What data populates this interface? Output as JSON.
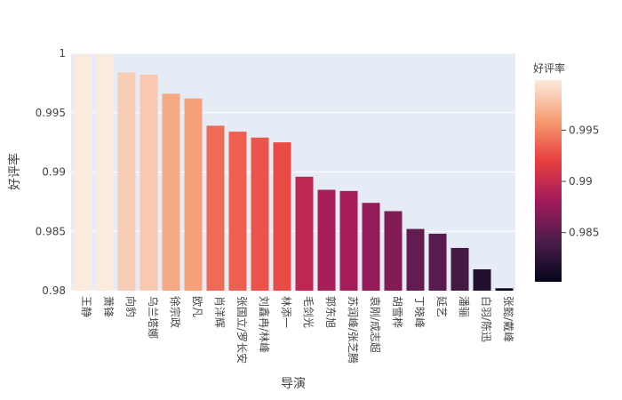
{
  "chart_data": {
    "type": "bar",
    "title": "",
    "xlabel": "导演",
    "ylabel": "好评率",
    "ylim": [
      0.98,
      1.0
    ],
    "yticks": [
      0.98,
      0.985,
      0.99,
      0.995,
      1.0
    ],
    "ytick_labels": [
      "0.98",
      "0.985",
      "0.99",
      "0.995",
      "1"
    ],
    "categories": [
      "王静",
      "萧锋",
      "向豹",
      "乌兰塔娜",
      "徐宗政",
      "欧凡",
      "肖洋辉",
      "张国立/罗长安",
      "刘鑫冉/林峰",
      "林添一",
      "毛剑光",
      "郭东旭",
      "苏润峰/张芝腾",
      "袁刚/成志超",
      "胡雪桦",
      "丁晓峰",
      "延艺",
      "潘骊",
      "白羽/陈迅",
      "张懿/戴峰"
    ],
    "values": [
      0.9999,
      0.9999,
      0.9984,
      0.9982,
      0.9966,
      0.9962,
      0.9939,
      0.9934,
      0.9929,
      0.9925,
      0.9896,
      0.9885,
      0.9884,
      0.9874,
      0.9867,
      0.9852,
      0.9848,
      0.9836,
      0.9818,
      0.9802
    ],
    "grid": true,
    "colorbar": {
      "title": "好评率",
      "range": [
        0.9802,
        0.9999
      ],
      "ticks": [
        0.985,
        0.99,
        0.995
      ],
      "tick_labels": [
        "0.985",
        "0.99",
        "0.995"
      ],
      "colorscale": [
        "#03051a",
        "#4c1d4b",
        "#a11a5b",
        "#e83f3f",
        "#f69c73",
        "#faebdd"
      ]
    }
  }
}
